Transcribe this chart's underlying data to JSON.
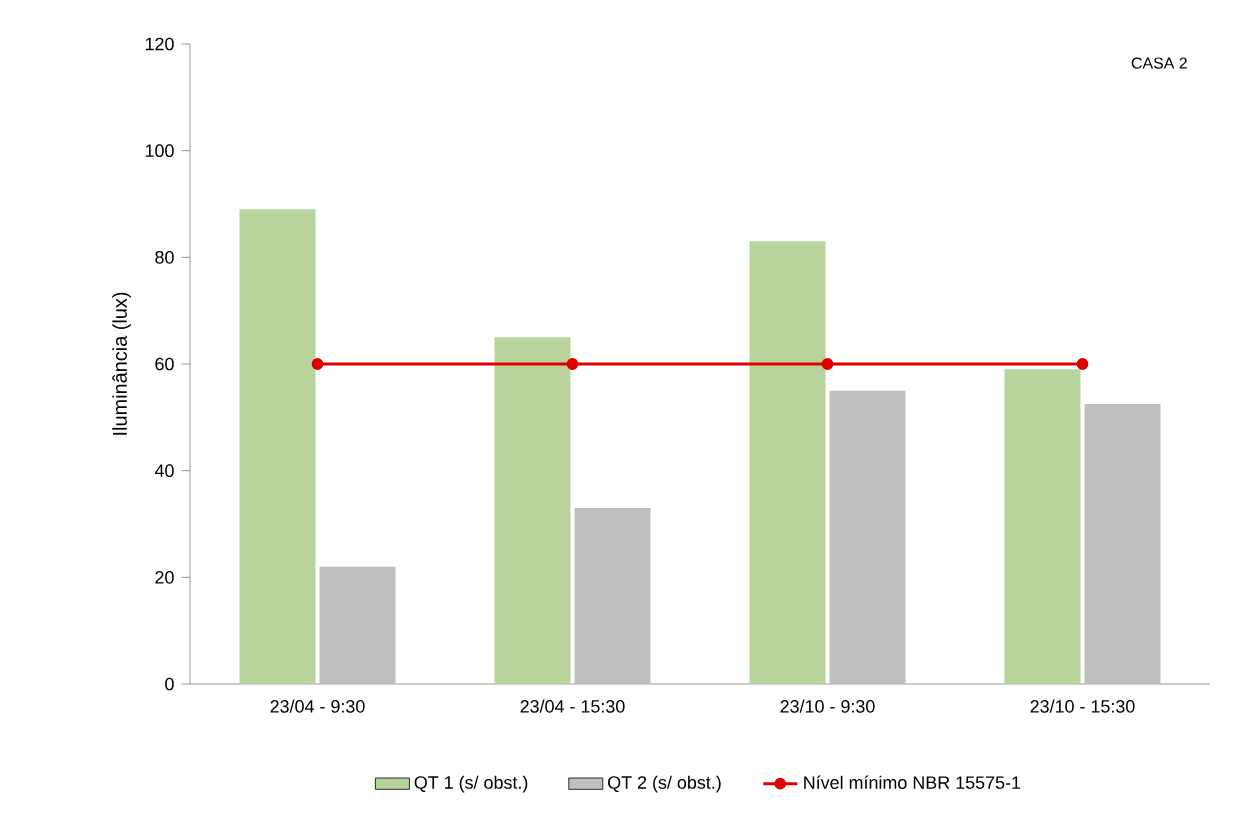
{
  "chart_data": {
    "type": "bar",
    "ylabel": "Iluminância (lux)",
    "annotations": [
      "CASA 2"
    ],
    "categories": [
      "23/04 - 9:30",
      "23/04 - 15:30",
      "23/10 - 9:30",
      "23/10 - 15:30"
    ],
    "series": [
      {
        "name": "QT 1 (s/ obst.)",
        "color": "#b8d49c",
        "values": [
          89,
          65,
          83,
          59
        ]
      },
      {
        "name": "QT 2 (s/ obst.)",
        "color": "#bfbfbf",
        "values": [
          22,
          33,
          55,
          52.5
        ]
      },
      {
        "name": "Nível mínimo NBR 15575-1",
        "color": "#e00000",
        "type": "line",
        "marker": "circle",
        "values": [
          60,
          60,
          60,
          60
        ]
      }
    ],
    "ylim": [
      0,
      120
    ],
    "yticks": [
      0,
      20,
      40,
      60,
      80,
      100,
      120
    ],
    "legend": "bottom"
  }
}
